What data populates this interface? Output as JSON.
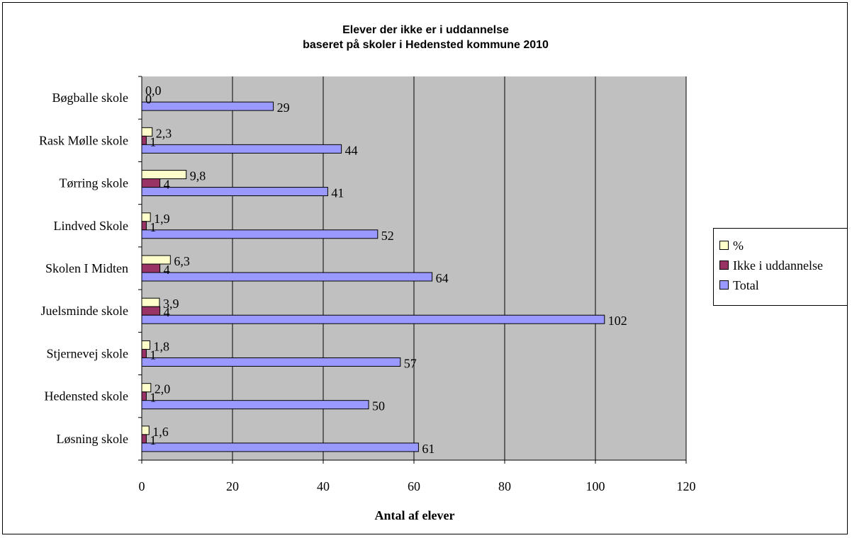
{
  "chart_data": {
    "type": "bar",
    "orientation": "horizontal",
    "title_line1": "Elever der ikke er i uddannelse",
    "title_line2": "baseret på skoler i Hedensted kommune 2010",
    "xlabel": "Antal af elever",
    "xlim": [
      0,
      120
    ],
    "x_ticks": [
      0,
      20,
      40,
      60,
      80,
      100,
      120
    ],
    "grid": true,
    "plot_background": "#c0c0c0",
    "legend_position": "right",
    "categories": [
      "Bøgballe skole",
      "Rask Mølle skole",
      "Tørring skole",
      "Lindved Skole",
      "Skolen I Midten",
      "Juelsminde skole",
      "Stjernevej skole",
      "Hedensted skole",
      "Løsning skole"
    ],
    "series": [
      {
        "name": "%",
        "color": "#ffffcc",
        "values": [
          0.0,
          2.3,
          9.8,
          1.9,
          6.3,
          3.9,
          1.8,
          2.0,
          1.6
        ],
        "labels": [
          "0,0",
          "2,3",
          "9,8",
          "1,9",
          "6,3",
          "3,9",
          "1,8",
          "2,0",
          "1,6"
        ]
      },
      {
        "name": "Ikke i uddannelse",
        "color": "#993366",
        "values": [
          0,
          1,
          4,
          1,
          4,
          4,
          1,
          1,
          1
        ],
        "labels": [
          "0",
          "1",
          "4",
          "1",
          "4",
          "4",
          "1",
          "1",
          "1"
        ]
      },
      {
        "name": "Total",
        "color": "#9999ff",
        "values": [
          29,
          44,
          41,
          52,
          64,
          102,
          57,
          50,
          61
        ],
        "labels": [
          "29",
          "44",
          "41",
          "52",
          "64",
          "102",
          "57",
          "50",
          "61"
        ]
      }
    ]
  }
}
